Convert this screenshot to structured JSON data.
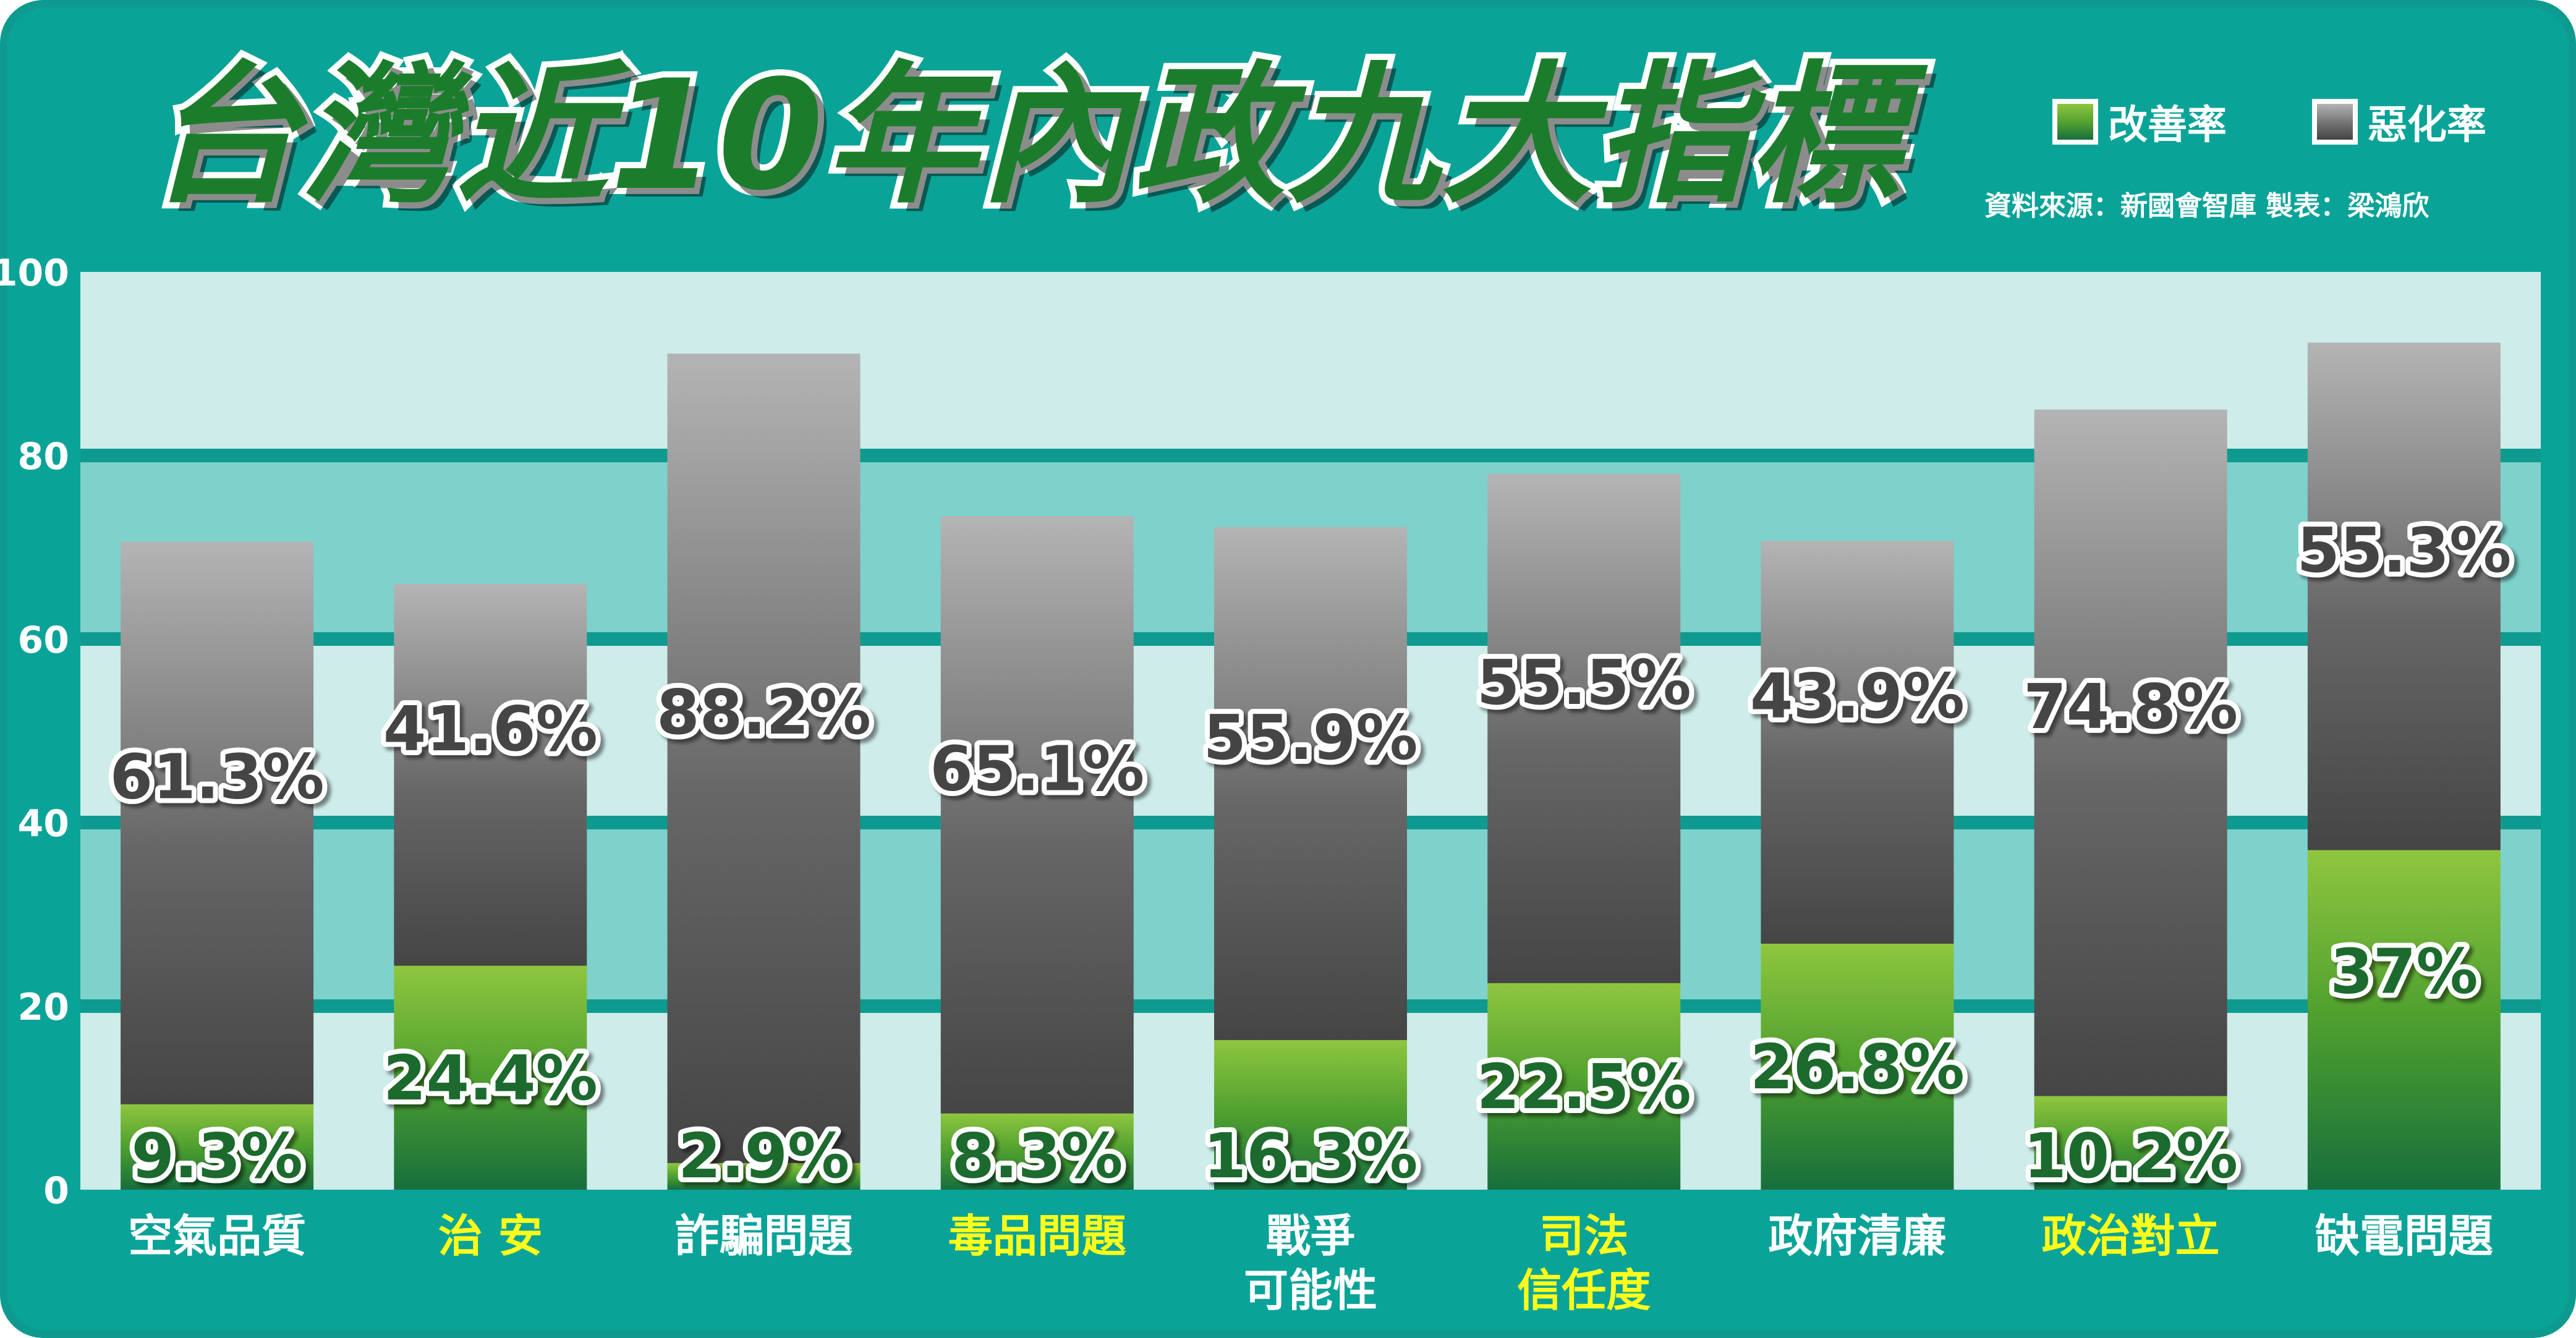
{
  "title": "台灣近10年內政九大指標",
  "legend": [
    {
      "label": "改善率",
      "color": "#5aa52f"
    },
    {
      "label": "惡化率",
      "color": "#7a7a7a"
    }
  ],
  "source": "資料來源：新國會智庫 製表：梁鴻欣",
  "colors": {
    "frame": "#0aa398",
    "improve_top": "#8fc63f",
    "improve_bottom": "#176e3c",
    "worsen_top": "#b4b4b4",
    "worsen_bottom": "#444444",
    "label_white": "#ffffff",
    "label_yellow": "#ffff1a",
    "band_light": "#cdecea",
    "band_mid": "#7fd1cb",
    "gridline": "#0f9a90"
  },
  "chart_data": {
    "type": "bar",
    "stacked": true,
    "ylim": [
      0,
      100
    ],
    "yticks": [
      "0",
      "20",
      "40",
      "60",
      "80",
      "100"
    ],
    "categories": [
      {
        "label": [
          "空氣品質"
        ],
        "highlight": false
      },
      {
        "label": [
          "治 安"
        ],
        "highlight": true
      },
      {
        "label": [
          "詐騙問題"
        ],
        "highlight": false
      },
      {
        "label": [
          "毒品問題"
        ],
        "highlight": true
      },
      {
        "label": [
          "戰爭",
          "可能性"
        ],
        "highlight": false
      },
      {
        "label": [
          "司法",
          "信任度"
        ],
        "highlight": true
      },
      {
        "label": [
          "政府清廉"
        ],
        "highlight": false
      },
      {
        "label": [
          "政治對立"
        ],
        "highlight": true
      },
      {
        "label": [
          "缺電問題"
        ],
        "highlight": false
      }
    ],
    "series": [
      {
        "name": "改善率",
        "values": [
          9.3,
          24.4,
          2.9,
          8.3,
          16.3,
          22.5,
          26.8,
          10.2,
          37
        ],
        "labels": [
          "9.3%",
          "24.4%",
          "2.9%",
          "8.3%",
          "16.3%",
          "22.5%",
          "26.8%",
          "10.2%",
          "37%"
        ]
      },
      {
        "name": "惡化率",
        "values": [
          61.3,
          41.6,
          88.2,
          65.1,
          55.9,
          55.5,
          43.9,
          74.8,
          55.3
        ],
        "labels": [
          "61.3%",
          "41.6%",
          "88.2%",
          "65.1%",
          "55.9%",
          "55.5%",
          "43.9%",
          "74.8%",
          "55.3%"
        ]
      }
    ]
  }
}
